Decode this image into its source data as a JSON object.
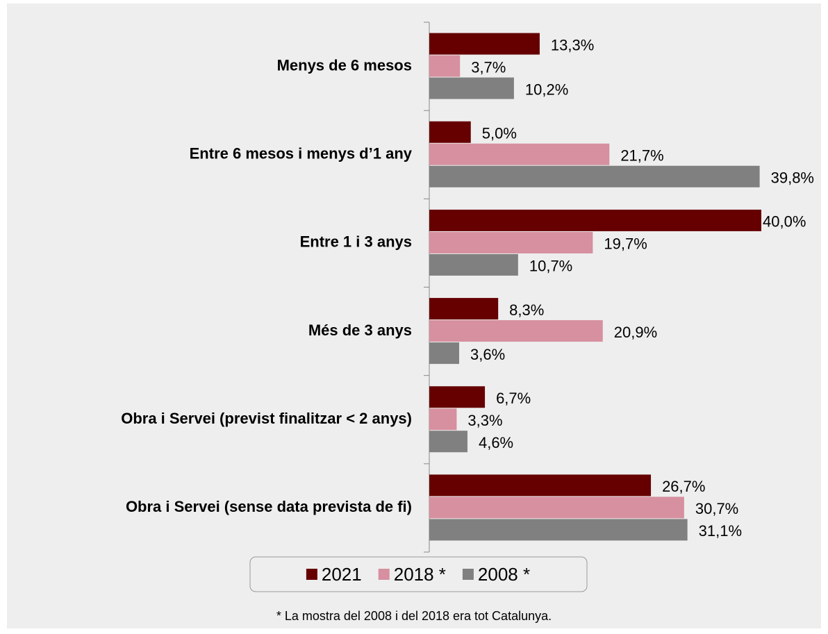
{
  "chart_data": {
    "type": "bar",
    "orientation": "horizontal",
    "categories": [
      "Menys de 6 mesos",
      "Entre 6 mesos i menys d’1 any",
      "Entre 1 i 3 anys",
      "Més de 3 anys",
      "Obra i Servei (previst finalitzar < 2 anys)",
      "Obra i Servei (sense data prevista de fi)"
    ],
    "series": [
      {
        "name": "2021",
        "color": "#660000",
        "values": [
          13.3,
          5.0,
          40.0,
          8.3,
          6.7,
          26.7
        ],
        "value_labels": [
          "13,3%",
          "5,0%",
          "40,0%",
          "8,3%",
          "6,7%",
          "26,7%"
        ]
      },
      {
        "name": "2018 *",
        "color": "#d6909f",
        "values": [
          3.7,
          21.7,
          19.7,
          20.9,
          3.3,
          30.7
        ],
        "value_labels": [
          "3,7%",
          "21,7%",
          "19,7%",
          "20,9%",
          "3,3%",
          "30,7%"
        ]
      },
      {
        "name": "2008 *",
        "color": "#808080",
        "values": [
          10.2,
          39.8,
          10.7,
          3.6,
          4.6,
          31.1
        ],
        "value_labels": [
          "10,2%",
          "39,8%",
          "10,7%",
          "3,6%",
          "4,6%",
          "31,1%"
        ]
      }
    ],
    "xlim": [
      0,
      40
    ],
    "legend": "bottom",
    "footnote": "* La mostra del 2008 i del 2018 era tot Catalunya."
  }
}
